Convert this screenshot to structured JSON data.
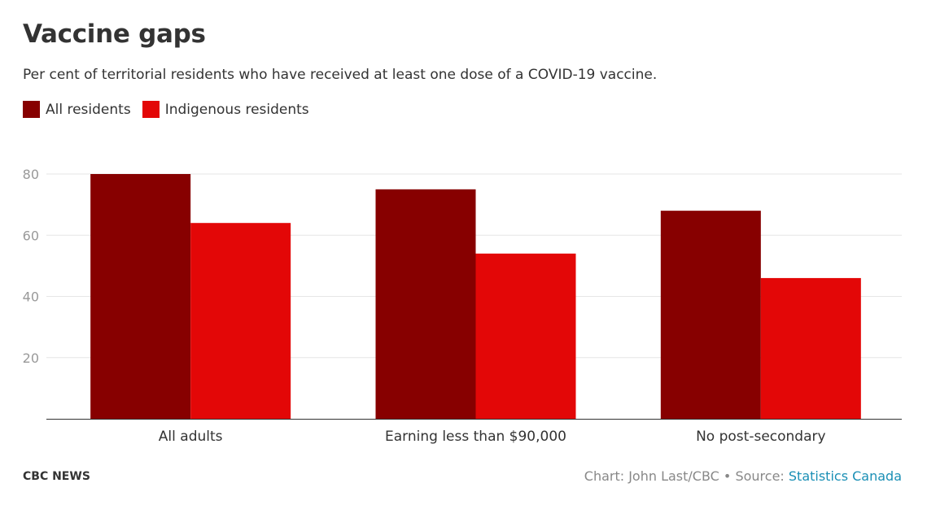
{
  "header": {
    "title": "Vaccine gaps",
    "subtitle": "Per cent of territorial residents who have received at least one dose of a COVID-19 vaccine."
  },
  "legend": [
    {
      "label": "All residents",
      "color": "#870000"
    },
    {
      "label": "Indigenous residents",
      "color": "#e30707"
    }
  ],
  "footer": {
    "brand": "CBC NEWS",
    "credit_prefix": "Chart: John Last/CBC • Source: ",
    "source_link": "Statistics Canada"
  },
  "chart_data": {
    "type": "bar",
    "title": "Vaccine gaps",
    "subtitle": "Per cent of territorial residents who have received at least one dose of a COVID-19 vaccine.",
    "xlabel": "",
    "ylabel": "",
    "categories": [
      "All adults",
      "Earning less than $90,000",
      "No post-secondary"
    ],
    "series": [
      {
        "name": "All residents",
        "color": "#870000",
        "values": [
          80,
          75,
          68
        ]
      },
      {
        "name": "Indigenous residents",
        "color": "#e30707",
        "values": [
          64,
          54,
          46
        ]
      }
    ],
    "ylim": [
      0,
      80
    ],
    "yticks": [
      20,
      40,
      60,
      80
    ],
    "grid": true,
    "legend_position": "top-left"
  }
}
